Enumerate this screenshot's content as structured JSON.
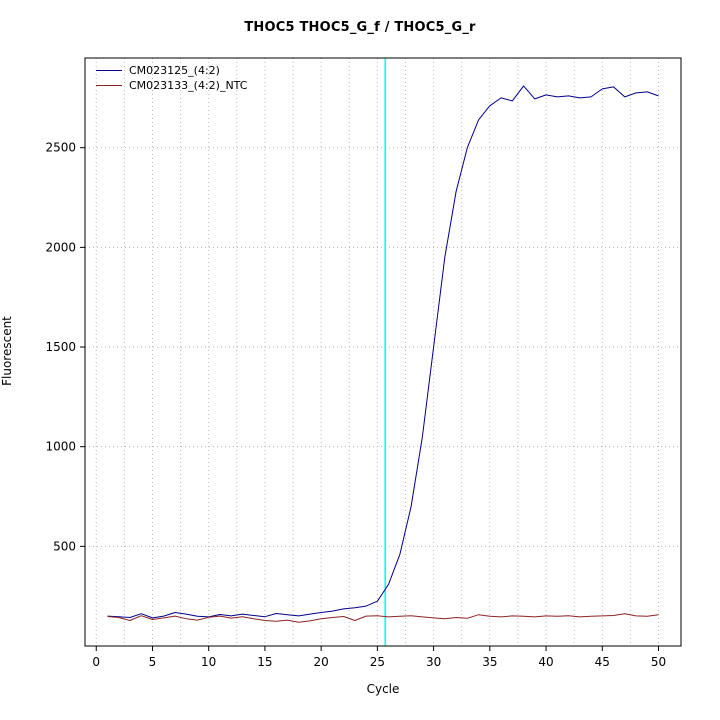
{
  "chart": {
    "title": "THOC5  THOC5_G_f / THOC5_G_r",
    "xlabel": "Cycle",
    "ylabel": "Fluorescent"
  },
  "chart_data": {
    "type": "line",
    "title": "THOC5  THOC5_G_f / THOC5_G_r",
    "xlabel": "Cycle",
    "ylabel": "Fluorescent",
    "xlim": [
      -1,
      52
    ],
    "ylim": [
      0,
      2950
    ],
    "x_ticks": [
      0,
      5,
      10,
      15,
      20,
      25,
      30,
      35,
      40,
      45,
      50
    ],
    "y_ticks": [
      500,
      1000,
      1500,
      2000,
      2500
    ],
    "grid": {
      "on": true,
      "v_step": 2.5,
      "color": "#b8b8b8"
    },
    "legend_position": "top-left",
    "threshold_line": {
      "x": 25.7,
      "color": "#00ffff"
    },
    "x": [
      1,
      2,
      3,
      4,
      5,
      6,
      7,
      8,
      9,
      10,
      11,
      12,
      13,
      14,
      15,
      16,
      17,
      18,
      19,
      20,
      21,
      22,
      23,
      24,
      25,
      26,
      27,
      28,
      29,
      30,
      31,
      32,
      33,
      34,
      35,
      36,
      37,
      38,
      39,
      40,
      41,
      42,
      43,
      44,
      45,
      46,
      47,
      48,
      49,
      50
    ],
    "series": [
      {
        "name": "CM023125_(4:2)",
        "color": "#00008b",
        "values": [
          150,
          147,
          143,
          162,
          141,
          150,
          168,
          160,
          149,
          146,
          158,
          151,
          160,
          153,
          147,
          163,
          157,
          151,
          160,
          168,
          175,
          186,
          192,
          200,
          225,
          310,
          460,
          700,
          1050,
          1500,
          1950,
          2280,
          2500,
          2640,
          2710,
          2750,
          2735,
          2810,
          2745,
          2765,
          2755,
          2760,
          2750,
          2755,
          2795,
          2805,
          2755,
          2775,
          2780,
          2760
        ]
      },
      {
        "name": "CM023133_(4:2)_NTC",
        "color": "#8b2323",
        "values": [
          148,
          143,
          128,
          152,
          133,
          141,
          150,
          137,
          130,
          144,
          150,
          140,
          147,
          137,
          128,
          124,
          130,
          119,
          126,
          137,
          143,
          148,
          128,
          150,
          152,
          146,
          149,
          152,
          146,
          141,
          137,
          143,
          139,
          157,
          149,
          146,
          151,
          149,
          146,
          151,
          149,
          152,
          146,
          149,
          151,
          153,
          162,
          151,
          149,
          157
        ]
      }
    ]
  }
}
